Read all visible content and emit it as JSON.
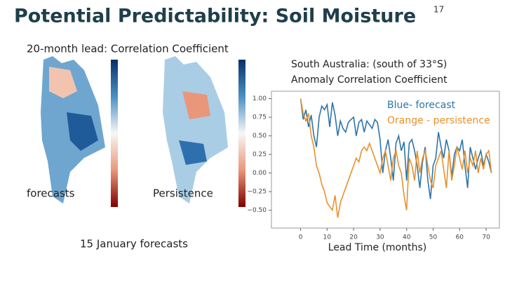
{
  "header": {
    "title": "Potential Predictability:  Soil Moisture",
    "page_number": "17"
  },
  "maps": {
    "heading": "20-month lead:  Correlation Coefficient",
    "left_label": "forecasts",
    "right_label": "Persistence",
    "caption": "15 January forecasts"
  },
  "chart_data": {
    "type": "line",
    "title": [
      "South Australia: (south of 33°S)",
      "Anomaly Correlation Coefficient"
    ],
    "x_label": "Lead Time (months)",
    "x": [
      0,
      1,
      2,
      3,
      4,
      5,
      6,
      7,
      8,
      9,
      10,
      11,
      12,
      13,
      14,
      15,
      16,
      17,
      18,
      19,
      20,
      21,
      22,
      23,
      24,
      25,
      26,
      27,
      28,
      29,
      30,
      31,
      32,
      33,
      34,
      35,
      36,
      37,
      38,
      39,
      40,
      41,
      42,
      43,
      44,
      45,
      46,
      47,
      48,
      49,
      50,
      51,
      52,
      53,
      54,
      55,
      56,
      57,
      58,
      59,
      60,
      61,
      62,
      63,
      64,
      65,
      66,
      67,
      68,
      69,
      70,
      71,
      72
    ],
    "series": [
      {
        "name": "Blue- forecast",
        "color": "#2e75a8",
        "values": [
          1.0,
          0.72,
          0.85,
          0.62,
          0.78,
          0.5,
          0.35,
          0.75,
          0.9,
          0.85,
          0.92,
          0.62,
          0.95,
          0.78,
          0.5,
          0.7,
          0.6,
          0.55,
          0.68,
          0.72,
          0.75,
          0.5,
          0.68,
          0.72,
          0.55,
          0.7,
          0.65,
          0.6,
          0.72,
          0.68,
          0.45,
          0.0,
          0.3,
          0.45,
          0.2,
          -0.1,
          0.4,
          0.5,
          0.3,
          0.42,
          -0.1,
          0.4,
          0.45,
          0.3,
          0.1,
          -0.2,
          0.15,
          0.35,
          -0.1,
          -0.35,
          0.1,
          0.2,
          0.55,
          0.35,
          0.2,
          0.45,
          0.3,
          -0.05,
          0.25,
          0.35,
          0.3,
          0.45,
          0.1,
          -0.2,
          0.35,
          0.2,
          0.05,
          0.2,
          0.3,
          0.1,
          0.25,
          0.15,
          0.0
        ]
      },
      {
        "name": "Orange - persistence",
        "color": "#e8912d",
        "values": [
          1.0,
          0.8,
          0.7,
          0.8,
          0.5,
          0.35,
          0.1,
          0.0,
          -0.15,
          -0.25,
          -0.4,
          -0.45,
          -0.5,
          -0.3,
          -0.6,
          -0.4,
          -0.3,
          -0.2,
          -0.1,
          0.0,
          0.1,
          0.2,
          0.15,
          0.3,
          0.35,
          0.3,
          0.4,
          0.3,
          0.2,
          0.1,
          0.0,
          0.2,
          0.3,
          0.1,
          -0.1,
          0.2,
          0.3,
          0.1,
          0.0,
          -0.3,
          -0.5,
          0.2,
          0.1,
          -0.1,
          0.3,
          0.0,
          0.2,
          0.3,
          0.1,
          -0.1,
          -0.2,
          0.1,
          0.2,
          0.3,
          0.05,
          -0.2,
          0.3,
          -0.1,
          0.1,
          0.35,
          0.2,
          0.05,
          0.3,
          0.0,
          0.2,
          0.1,
          0.3,
          0.0,
          0.2,
          0.05,
          0.25,
          0.3,
          0.0
        ]
      }
    ],
    "xlim": [
      -11,
      75
    ],
    "ylim": [
      -0.74,
      1.1
    ],
    "xticks": [
      0,
      10,
      20,
      30,
      40,
      50,
      60,
      70
    ],
    "yticks": [
      {
        "value": 1,
        "label": "1.00"
      },
      {
        "value": 0.75,
        "label": "0.75"
      },
      {
        "value": 0.5,
        "label": "0.50"
      },
      {
        "value": 0.25,
        "label": "0.25"
      },
      {
        "value": 0,
        "label": "0.00"
      },
      {
        "value": -0.25,
        "label": "−0.25"
      },
      {
        "value": -0.5,
        "label": "−0.50"
      }
    ]
  }
}
